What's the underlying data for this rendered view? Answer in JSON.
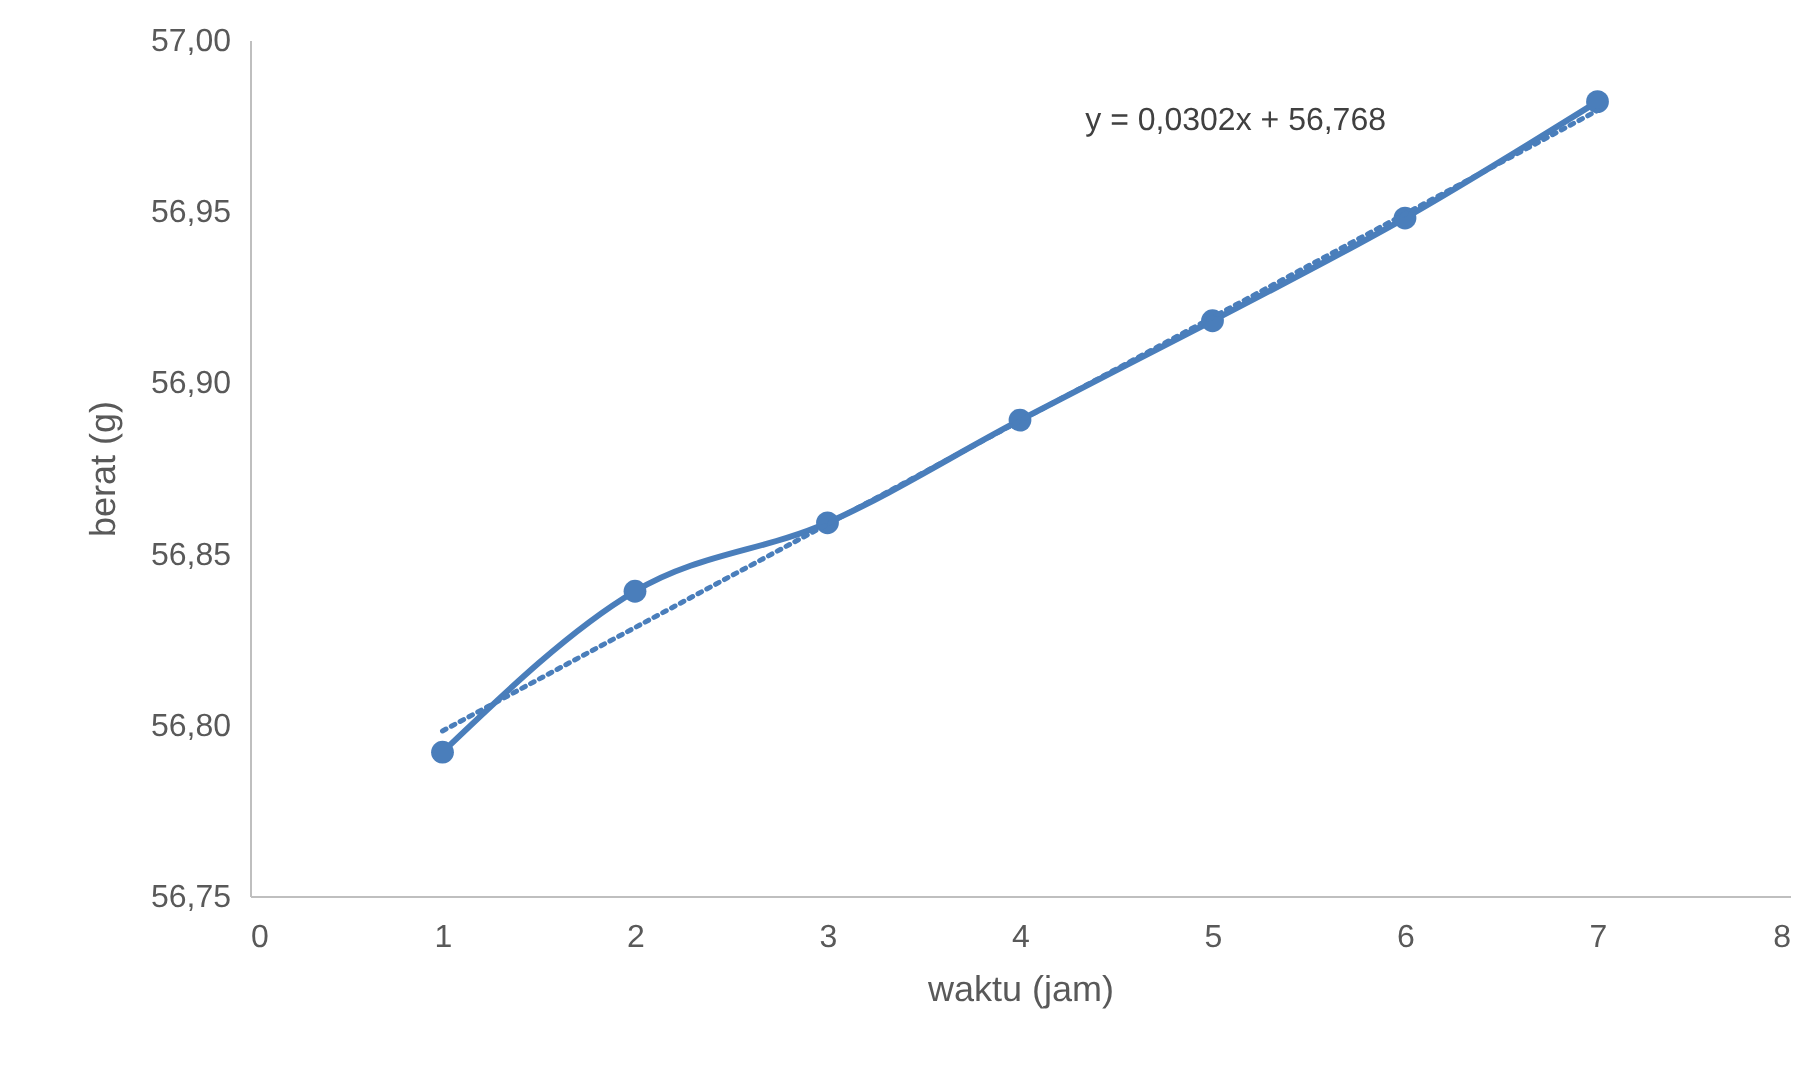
{
  "chart_data": {
    "type": "line",
    "xlabel": "waktu (jam)",
    "ylabel": "berat (g)",
    "x": [
      1,
      2,
      3,
      4,
      5,
      6,
      7
    ],
    "series": [
      {
        "color": "#4a7ebb",
        "values": [
          56.792,
          56.839,
          56.859,
          56.889,
          56.918,
          56.948,
          56.982
        ]
      },
      {
        "color": "#4a7ebb",
        "x": [
          1,
          7
        ],
        "values": [
          56.7982,
          56.9794
        ],
        "line_style": "dotted",
        "marker": "none"
      }
    ],
    "xlim": [
      0,
      8
    ],
    "xticks": [
      0,
      1,
      2,
      3,
      4,
      5,
      6,
      7,
      8
    ],
    "ylim": [
      56.75,
      57.0
    ],
    "yticks": [
      {
        "value": 56.75,
        "label": "56,75"
      },
      {
        "value": 56.8,
        "label": "56,80"
      },
      {
        "value": 56.85,
        "label": "56,85"
      },
      {
        "value": 56.9,
        "label": "56,90"
      },
      {
        "value": 56.95,
        "label": "56,95"
      },
      {
        "value": 57.0,
        "label": "57,00"
      }
    ],
    "marker": "circle",
    "line_style": "solid",
    "grid": false,
    "annotations": [
      "y = 0,0302x + 56,768"
    ]
  }
}
